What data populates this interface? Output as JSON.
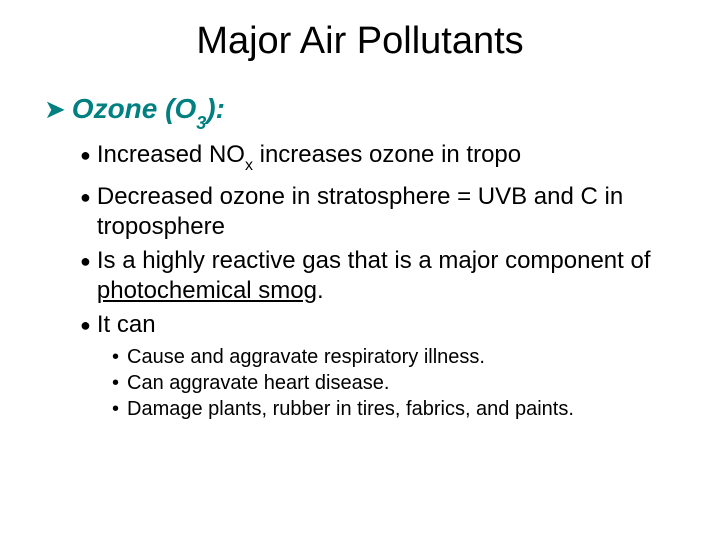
{
  "title": "Major Air Pollutants",
  "level1": {
    "before": "Ozone (O",
    "sub": "3",
    "after": "):"
  },
  "level2": [
    {
      "before": "Increased NO",
      "sub": "x",
      "mid": " increases ozone in tropo",
      "after": ""
    },
    {
      "before": "Decreased ozone in stratosphere = UVB and C in troposphere",
      "sub": "",
      "mid": "",
      "after": ""
    },
    {
      "before": "Is a highly reactive gas that is a major component of ",
      "sub": "",
      "mid": "",
      "under": "photochemical smog",
      "after": "."
    },
    {
      "before": "It can",
      "sub": "",
      "mid": "",
      "after": ""
    }
  ],
  "level3": [
    " Cause and aggravate respiratory illness.",
    "Can aggravate heart disease.",
    "Damage plants, rubber in tires, fabrics, and paints."
  ],
  "colors": {
    "accent": "#008080",
    "text": "#000000",
    "bg": "#ffffff"
  },
  "fonts": {
    "family": "Arial",
    "title_size": 38,
    "level1_size": 28,
    "level2_size": 24,
    "level3_size": 20
  }
}
